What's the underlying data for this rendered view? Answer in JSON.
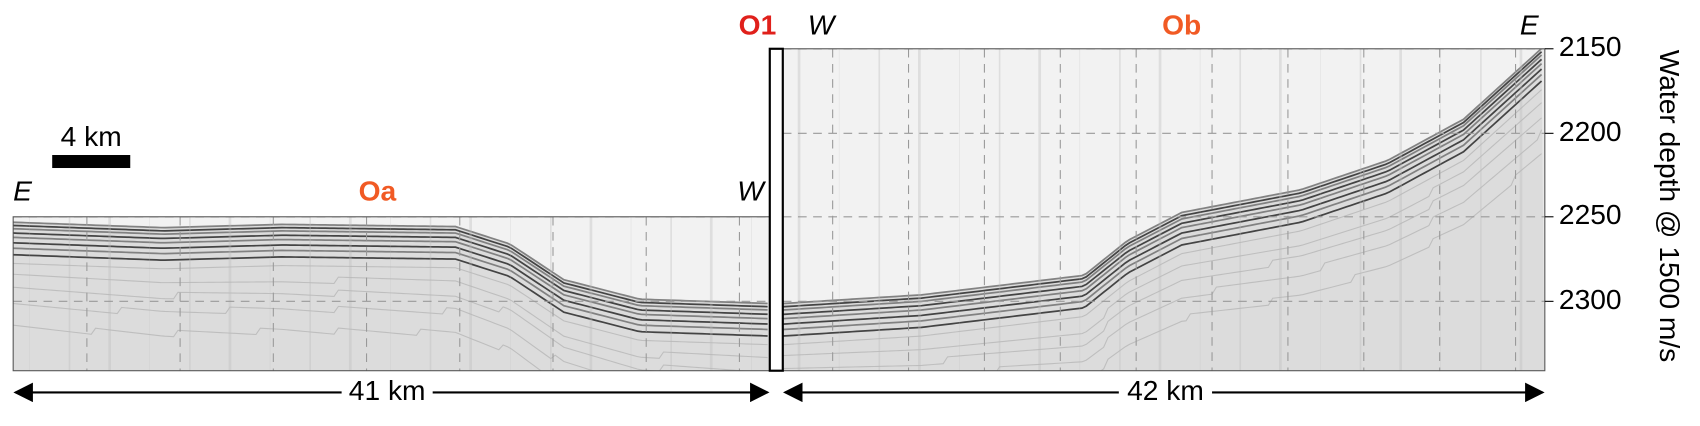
{
  "figure": {
    "site": "O1",
    "scale_bar": "4 km",
    "profiles": [
      {
        "label": "Oa",
        "left_end": "E",
        "right_end": "W",
        "length": "41 km"
      },
      {
        "label": "Ob",
        "left_end": "W",
        "right_end": "E",
        "length": "42 km"
      }
    ],
    "axis": {
      "title": "Water depth @ 1500 m/s",
      "ticks": [
        "2150",
        "2200",
        "2250",
        "2300"
      ]
    }
  }
}
